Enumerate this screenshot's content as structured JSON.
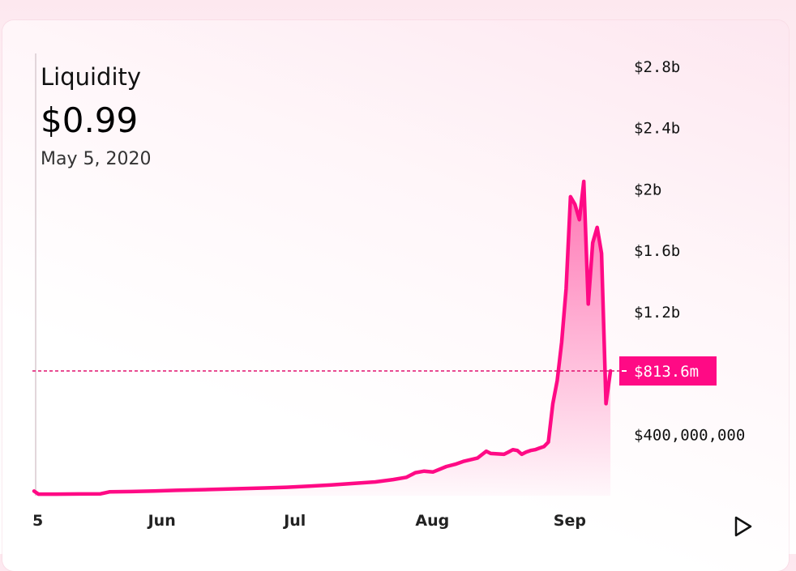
{
  "header": {
    "title": "Liquidity",
    "value": "$0.99",
    "date": "May 5, 2020"
  },
  "colors": {
    "line": "#ff0a85",
    "fill_top": "#ff5fa8",
    "dashed": "#e0106f",
    "marker_bg": "#ff0a85"
  },
  "icons": {
    "play": "play-icon"
  },
  "chart_data": {
    "type": "area",
    "title": "Liquidity",
    "x_axis": {
      "ticks": [
        "5",
        "Jun",
        "Jul",
        "Aug",
        "Sep"
      ],
      "range": [
        "2020-05-05",
        "2020-09-14"
      ]
    },
    "y_axis": {
      "ticks": [
        "$2.8b",
        "$2.4b",
        "$2b",
        "$1.6b",
        "$1.2b",
        "$400,000,000"
      ],
      "tick_values": [
        2800000000,
        2400000000,
        2000000000,
        1600000000,
        1200000000,
        400000000
      ],
      "range": [
        0,
        2800000000
      ],
      "position": "right"
    },
    "current_marker": {
      "label": "$813.6m",
      "value": 813600000
    },
    "series": [
      {
        "values": [
          [
            "2020-05-05",
            30000000
          ],
          [
            "2020-05-06",
            10000000
          ],
          [
            "2020-05-10",
            10000000
          ],
          [
            "2020-05-15",
            11000000
          ],
          [
            "2020-05-20",
            12000000
          ],
          [
            "2020-05-22",
            25000000
          ],
          [
            "2020-05-27",
            27000000
          ],
          [
            "2020-06-01",
            30000000
          ],
          [
            "2020-06-06",
            35000000
          ],
          [
            "2020-06-11",
            38000000
          ],
          [
            "2020-06-16",
            42000000
          ],
          [
            "2020-06-21",
            46000000
          ],
          [
            "2020-06-26",
            50000000
          ],
          [
            "2020-07-01",
            55000000
          ],
          [
            "2020-07-06",
            62000000
          ],
          [
            "2020-07-11",
            70000000
          ],
          [
            "2020-07-16",
            80000000
          ],
          [
            "2020-07-21",
            90000000
          ],
          [
            "2020-07-25",
            105000000
          ],
          [
            "2020-07-28",
            120000000
          ],
          [
            "2020-07-30",
            150000000
          ],
          [
            "2020-08-01",
            160000000
          ],
          [
            "2020-08-03",
            155000000
          ],
          [
            "2020-08-06",
            190000000
          ],
          [
            "2020-08-08",
            205000000
          ],
          [
            "2020-08-10",
            225000000
          ],
          [
            "2020-08-13",
            245000000
          ],
          [
            "2020-08-15",
            290000000
          ],
          [
            "2020-08-16",
            275000000
          ],
          [
            "2020-08-19",
            270000000
          ],
          [
            "2020-08-20",
            285000000
          ],
          [
            "2020-08-21",
            300000000
          ],
          [
            "2020-08-22",
            295000000
          ],
          [
            "2020-08-23",
            270000000
          ],
          [
            "2020-08-24",
            285000000
          ],
          [
            "2020-08-25",
            295000000
          ],
          [
            "2020-08-26",
            300000000
          ],
          [
            "2020-08-27",
            310000000
          ],
          [
            "2020-08-28",
            320000000
          ],
          [
            "2020-08-29",
            350000000
          ],
          [
            "2020-08-30",
            600000000
          ],
          [
            "2020-08-31",
            750000000
          ],
          [
            "2020-09-01",
            1000000000
          ],
          [
            "2020-09-02",
            1350000000
          ],
          [
            "2020-09-03",
            1950000000
          ],
          [
            "2020-09-04",
            1900000000
          ],
          [
            "2020-09-05",
            1800000000
          ],
          [
            "2020-09-06",
            2050000000
          ],
          [
            "2020-09-07",
            1250000000
          ],
          [
            "2020-09-08",
            1650000000
          ],
          [
            "2020-09-09",
            1750000000
          ],
          [
            "2020-09-10",
            1580000000
          ],
          [
            "2020-09-11",
            600000000
          ],
          [
            "2020-09-12",
            813600000
          ]
        ]
      }
    ],
    "grid": false,
    "legend": "none"
  }
}
